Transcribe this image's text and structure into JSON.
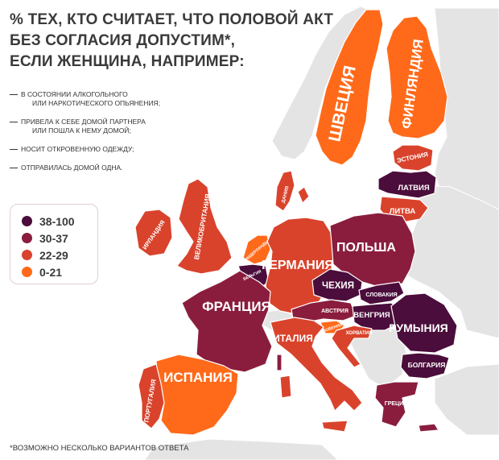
{
  "title_lines": [
    "% ТЕХ, КТО СЧИТАЕТ, ЧТО ПОЛОВОЙ АКТ",
    "БЕЗ СОГЛАСИЯ ДОПУСТИМ*,",
    "ЕСЛИ ЖЕНЩИНА, НАПРИМЕР:"
  ],
  "notes": [
    {
      "line1": "В СОСТОЯНИИ АЛКОГОЛЬНОГО",
      "line2": "ИЛИ НАРКОТИЧЕСКОГО ОПЬЯНЕНИЯ;"
    },
    {
      "line1": "ПРИВЕЛА К СЕБЕ ДОМОЙ ПАРТНЕРА",
      "line2": "ИЛИ ПОШЛА К НЕМУ ДОМОЙ;"
    },
    {
      "line1": "НОСИТ ОТКРОВЕННУЮ ОДЕЖДУ;",
      "line2": ""
    },
    {
      "line1": "ОТПРАВИЛАСЬ ДОМОЙ ОДНА.",
      "line2": ""
    }
  ],
  "legend": [
    {
      "label": "38-100",
      "color": "#4b0d3b"
    },
    {
      "label": "30-37",
      "color": "#8a1d3e"
    },
    {
      "label": "22-29",
      "color": "#d9432c"
    },
    {
      "label": "0-21",
      "color": "#ff6a1a"
    }
  ],
  "footnote": "*ВОЗМОЖНО НЕСКОЛЬКО ВАРИАНТОВ ОТВЕТА",
  "colors": {
    "sea": "#ffffff",
    "non_eu_land": "#e4e4e4",
    "outline": "#ffffff"
  },
  "countries": [
    {
      "key": "sweden",
      "label": "ШВЕЦИЯ",
      "category": "0-21"
    },
    {
      "key": "finland",
      "label": "ФИНЛЯНДИЯ",
      "category": "0-21"
    },
    {
      "key": "estonia",
      "label": "ЭСТОНИЯ",
      "category": "22-29"
    },
    {
      "key": "latvia",
      "label": "ЛАТВИЯ",
      "category": "38-100"
    },
    {
      "key": "lithuania",
      "label": "ЛИТВА",
      "category": "22-29"
    },
    {
      "key": "denmark",
      "label": "ДАНИЯ",
      "category": "22-29"
    },
    {
      "key": "ireland",
      "label": "ИРЛАНДИЯ",
      "category": "22-29"
    },
    {
      "key": "uk",
      "label": "ВЕЛИКОБРИТАНИЯ",
      "category": "22-29"
    },
    {
      "key": "netherlands",
      "label": "НИДЕРЛАНДЫ",
      "category": "0-21"
    },
    {
      "key": "belgium",
      "label": "БЕЛЬГИЯ",
      "category": "38-100"
    },
    {
      "key": "germany",
      "label": "ГЕРМАНИЯ",
      "category": "22-29"
    },
    {
      "key": "poland",
      "label": "ПОЛЬША",
      "category": "30-37"
    },
    {
      "key": "czechia",
      "label": "ЧЕХИЯ",
      "category": "38-100"
    },
    {
      "key": "slovakia",
      "label": "СЛОВАКИЯ",
      "category": "38-100"
    },
    {
      "key": "austria",
      "label": "АВСТРИЯ",
      "category": "30-37"
    },
    {
      "key": "hungary",
      "label": "ВЕНГРИЯ",
      "category": "38-100"
    },
    {
      "key": "slovenia",
      "label": "СЛОВЕНИЯ",
      "category": "0-21"
    },
    {
      "key": "croatia",
      "label": "ХОРВАТИЯ",
      "category": "22-29"
    },
    {
      "key": "romania",
      "label": "РУМЫНИЯ",
      "category": "38-100"
    },
    {
      "key": "bulgaria",
      "label": "БОЛГАРИЯ",
      "category": "38-100"
    },
    {
      "key": "greece",
      "label": "ГРЕЦИЯ",
      "category": "30-37"
    },
    {
      "key": "france",
      "label": "ФРАНЦИЯ",
      "category": "30-37"
    },
    {
      "key": "italy",
      "label": "ИТАЛИЯ",
      "category": "22-29"
    },
    {
      "key": "spain",
      "label": "ИСПАНИЯ",
      "category": "0-21"
    },
    {
      "key": "portugal",
      "label": "ПОРТУГАЛИЯ",
      "category": "22-29"
    }
  ]
}
